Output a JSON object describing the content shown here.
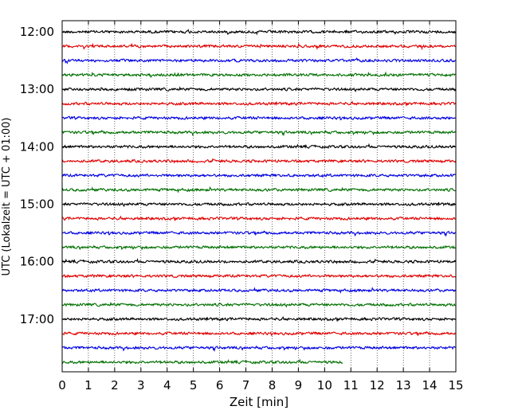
{
  "chart_data": {
    "type": "line",
    "xlabel": "Zeit  [min]",
    "ylabel": "UTC (Lokalzeit = UTC + 01:00)",
    "xlim": [
      0,
      15
    ],
    "x_ticks": [
      "0",
      "1",
      "2",
      "3",
      "4",
      "5",
      "6",
      "7",
      "8",
      "9",
      "10",
      "11",
      "12",
      "13",
      "14",
      "15"
    ],
    "y_tick_labels": [
      "12:00",
      "13:00",
      "14:00",
      "15:00",
      "16:00",
      "17:00"
    ],
    "grid": "vertical dotted",
    "trace_interval_minutes": 15,
    "traces_per_hour": 4,
    "trace_count": 24,
    "last_trace_end_minutes": 10.7,
    "series_colors": [
      "#000000",
      "#e00000",
      "#0000e0",
      "#007000"
    ]
  }
}
